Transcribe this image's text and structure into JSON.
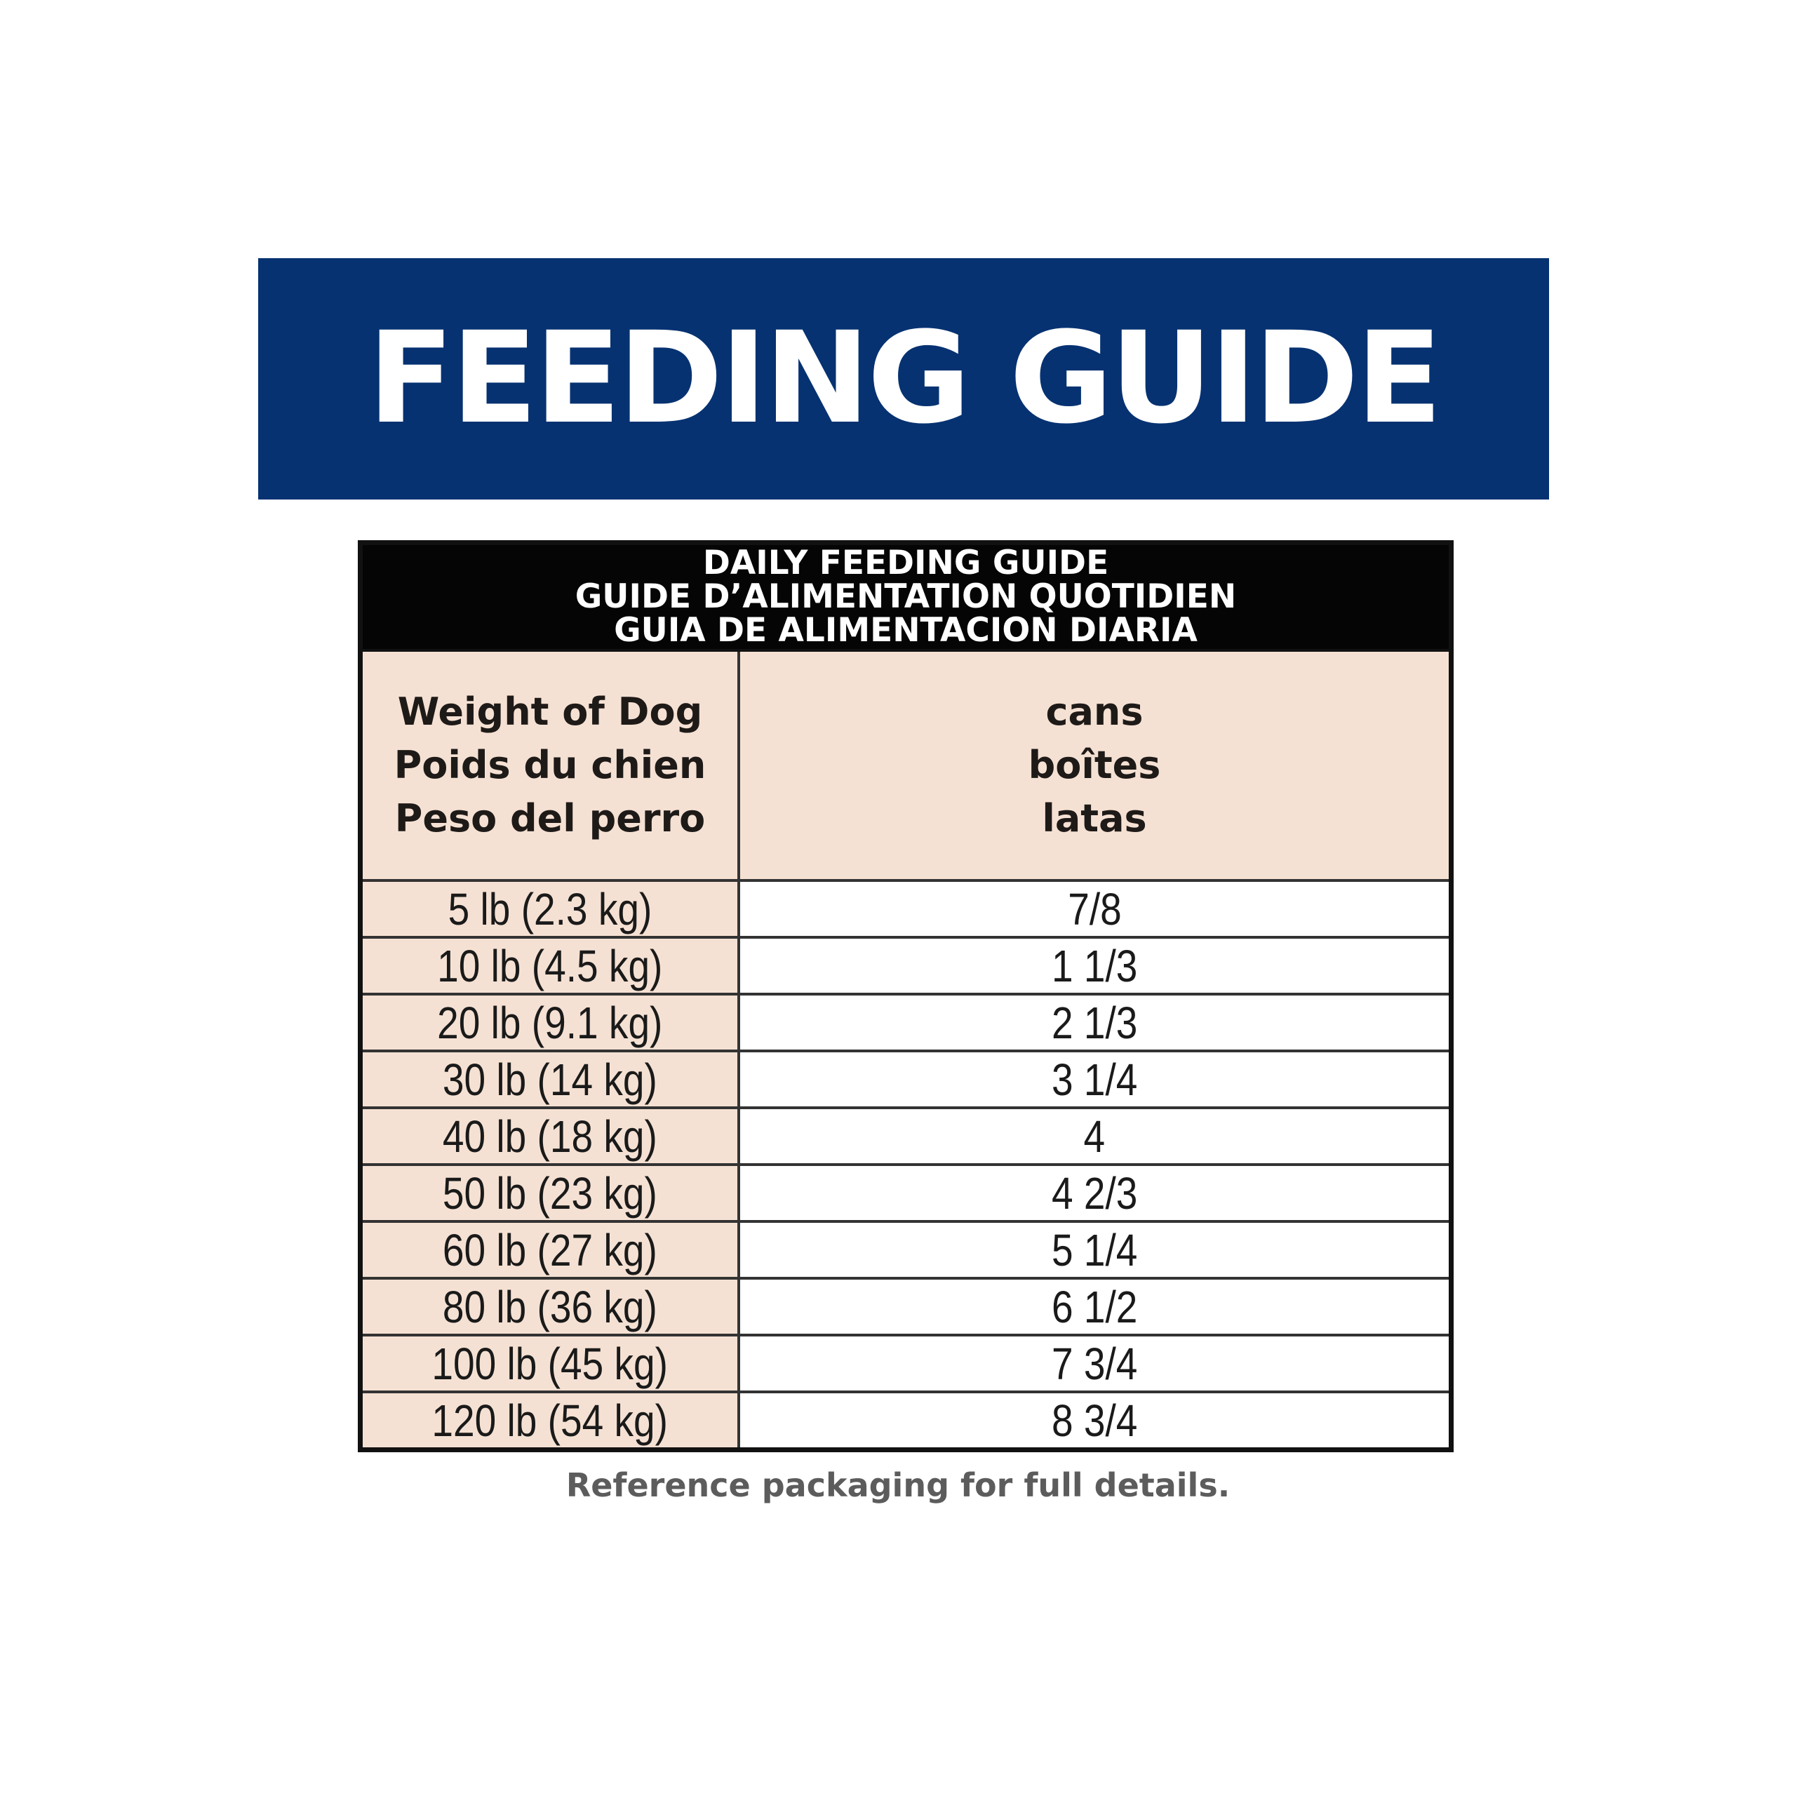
{
  "banner": {
    "title": "FEEDING GUIDE"
  },
  "table": {
    "header_lines": [
      "DAILY FEEDING GUIDE",
      "GUIDE D’ALIMENTATION QUOTIDIEN",
      "GUIA DE ALIMENTACION DIARIA"
    ],
    "weight_heading": [
      "Weight of Dog",
      "Poids du chien",
      "Peso del perro"
    ],
    "cans_heading": [
      "cans",
      "boîtes",
      "latas"
    ],
    "rows": [
      {
        "weight": "5 lb (2.3 kg)",
        "cans": "7/8"
      },
      {
        "weight": "10 lb (4.5 kg)",
        "cans": "1 1/3"
      },
      {
        "weight": "20 lb (9.1 kg)",
        "cans": "2 1/3"
      },
      {
        "weight": "30 lb (14 kg)",
        "cans": "3 1/4"
      },
      {
        "weight": "40 lb (18 kg)",
        "cans": "4"
      },
      {
        "weight": "50 lb (23 kg)",
        "cans": "4 2/3"
      },
      {
        "weight": "60 lb (27 kg)",
        "cans": "5 1/4"
      },
      {
        "weight": "80 lb (36 kg)",
        "cans": "6 1/2"
      },
      {
        "weight": "100 lb (45 kg)",
        "cans": "7 3/4"
      },
      {
        "weight": "120 lb (54 kg)",
        "cans": "8 3/4"
      }
    ]
  },
  "footer": {
    "note": "Reference packaging for full details."
  },
  "colors": {
    "banner_bg": "#063272",
    "weight_column_bg": "#f5e1d3",
    "header_bg": "#050505"
  }
}
